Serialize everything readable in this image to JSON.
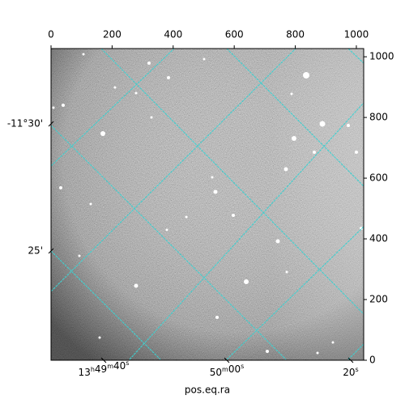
{
  "chart_data": {
    "type": "image",
    "xlabel": "pos.eq.ra",
    "xlim": [
      0,
      1024
    ],
    "ylim": [
      0,
      1027
    ],
    "xticks": [
      0,
      200,
      400,
      600,
      800,
      1000
    ],
    "yticks": [
      0,
      200,
      400,
      600,
      800,
      1000
    ],
    "ra_ticks": [
      "13h49m40s",
      "50m00s",
      "20s"
    ],
    "dec_ticks": [
      "-11°30'",
      "25'"
    ],
    "grid_color": "#3fd0d0"
  }
}
